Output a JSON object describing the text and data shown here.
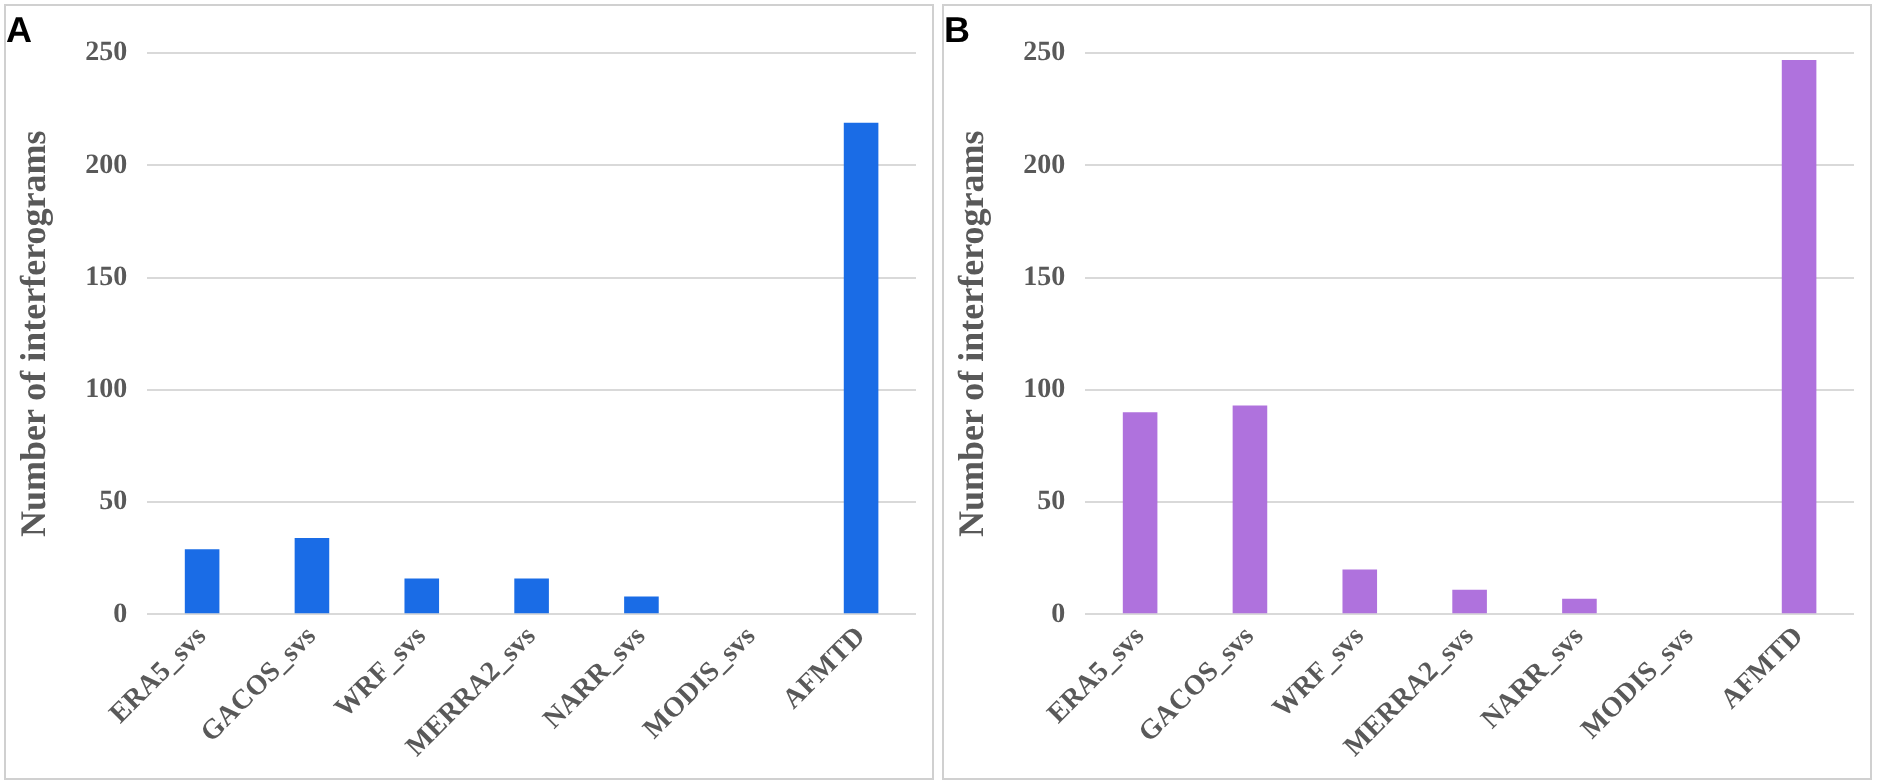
{
  "chart_data": [
    {
      "type": "bar",
      "title": "A",
      "ylabel": "Number of interferograms",
      "categories": [
        "ERA5_svs",
        "GACOS_svs",
        "WRF_svs",
        "MERRA2_svs",
        "NARR_svs",
        "MODIS_svs",
        "AFMTD"
      ],
      "values": [
        29,
        34,
        16,
        16,
        8,
        0,
        219
      ],
      "color": "#1a6ce6",
      "ylim": [
        0,
        250
      ],
      "yticks": [
        0,
        50,
        100,
        150,
        200,
        250
      ],
      "grid": "y",
      "legend": false
    },
    {
      "type": "bar",
      "title": "B",
      "ylabel": "Number of interferograms",
      "categories": [
        "ERA5_svs",
        "GACOS_svs",
        "WRF_svs",
        "MERRA2_svs",
        "NARR_svs",
        "MODIS_svs",
        "AFMTD"
      ],
      "values": [
        90,
        93,
        20,
        11,
        7,
        0,
        247
      ],
      "color": "#af72dd",
      "ylim": [
        0,
        250
      ],
      "yticks": [
        0,
        50,
        100,
        150,
        200,
        250
      ],
      "grid": "y",
      "legend": false
    }
  ]
}
